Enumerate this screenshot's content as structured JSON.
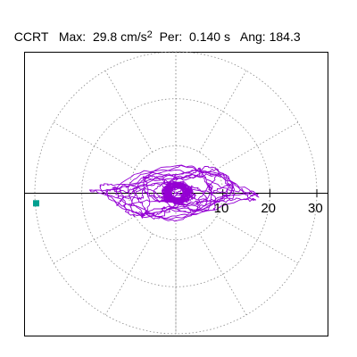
{
  "header": {
    "station": "CCRT",
    "max_label": "Max:",
    "max_value": "29.8 cm/s",
    "max_exp": "2",
    "per_label": "Per:",
    "per_value": "0.140 s",
    "ang_label": "Ang:",
    "ang_value": "184.3"
  },
  "chart_data": {
    "type": "polar-trace",
    "title": "",
    "radial_ticks": [
      10,
      20,
      30
    ],
    "r_max": 30,
    "grid_circles": [
      10,
      20,
      30
    ],
    "spoke_angles_deg": [
      0,
      30,
      60,
      90,
      120,
      150,
      180,
      210,
      240,
      270,
      300,
      330
    ],
    "peak": {
      "magnitude": 29.8,
      "unit": "cm/s2",
      "angle_deg": 184.3,
      "period_s": 0.14
    },
    "colors": {
      "trace": "#9400d3",
      "marker": "#00a090",
      "grid": "#888888",
      "frame": "#000000"
    }
  }
}
